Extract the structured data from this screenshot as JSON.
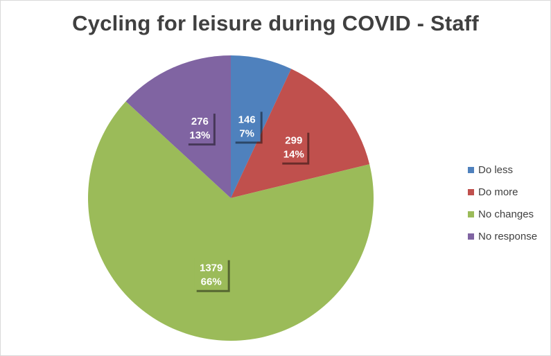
{
  "chart_data": {
    "type": "pie",
    "title": "Cycling for leisure during COVID - Staff",
    "legend_position": "right",
    "categories": [
      "Do less",
      "Do more",
      "No changes",
      "No response"
    ],
    "values": [
      146,
      299,
      1379,
      276
    ],
    "percent_labels": [
      "7%",
      "14%",
      "66%",
      "13%"
    ],
    "colors": [
      "#4f81bd",
      "#c0504d",
      "#9bbb59",
      "#8064a2"
    ],
    "start_angle_deg": 0,
    "direction": "clockwise"
  }
}
